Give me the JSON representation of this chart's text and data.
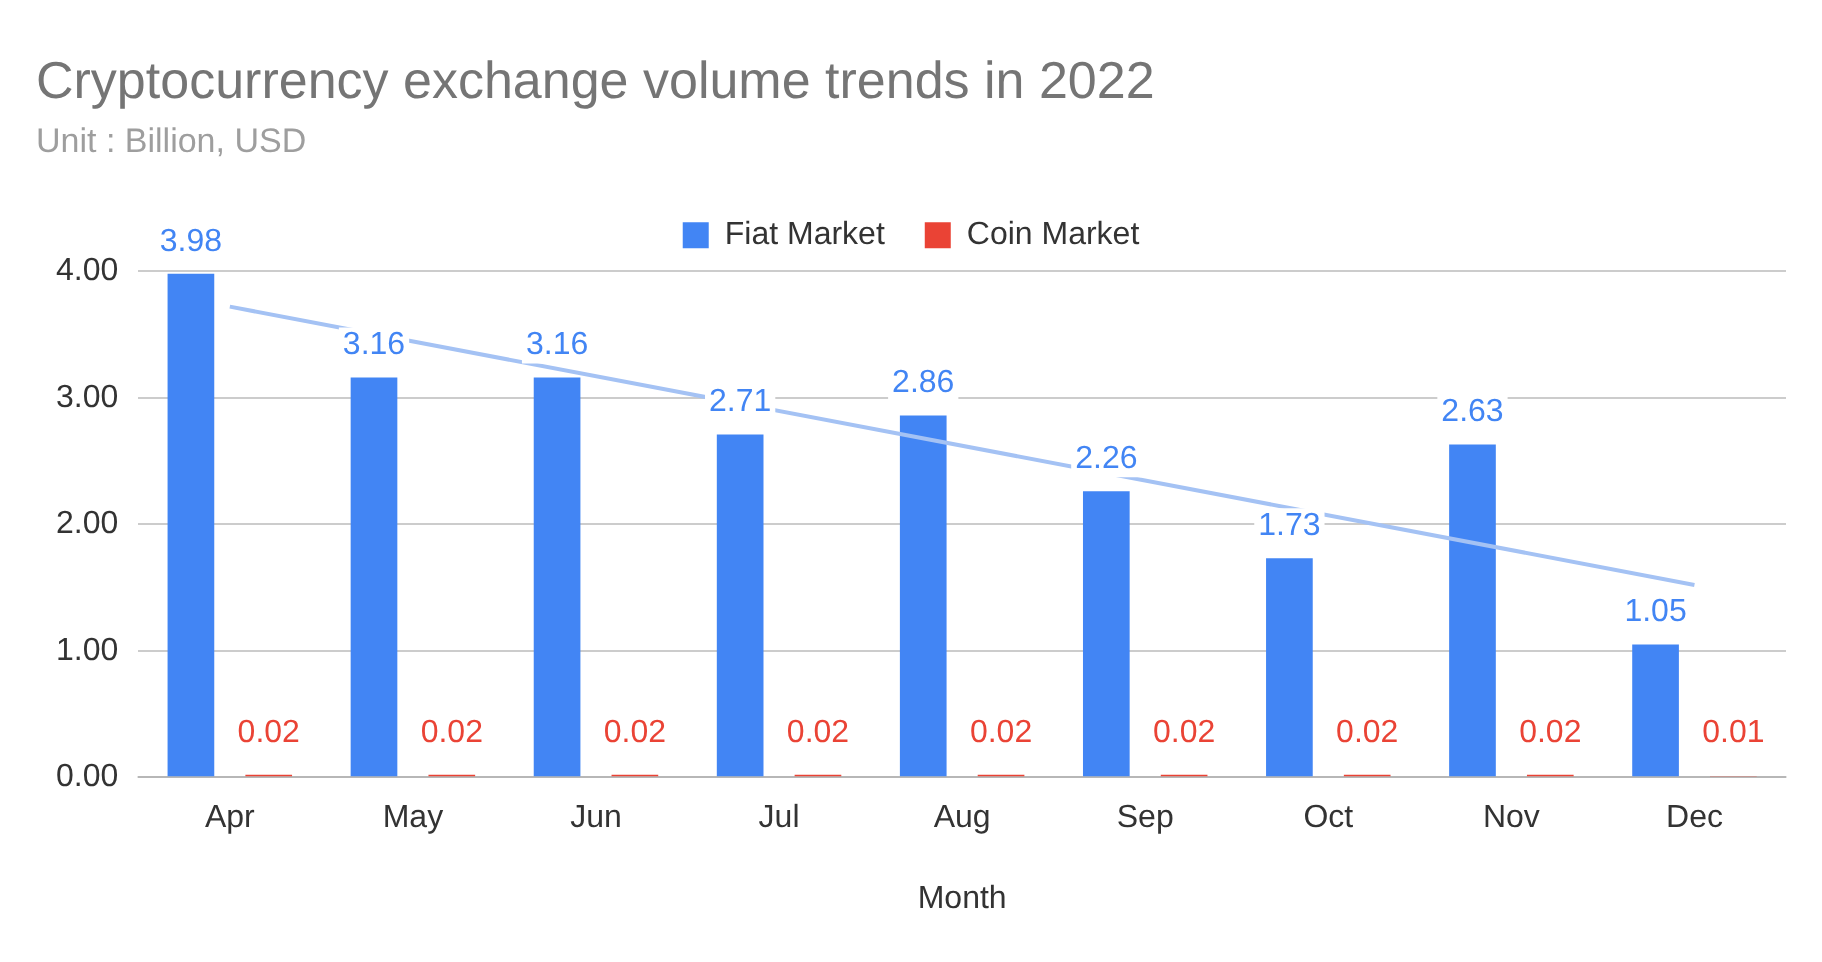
{
  "chart_data": {
    "type": "bar",
    "title": "Cryptocurrency exchange volume trends in 2022",
    "subtitle": "Unit : Billion, USD",
    "xlabel": "Month",
    "categories": [
      "Apr",
      "May",
      "Jun",
      "Jul",
      "Aug",
      "Sep",
      "Oct",
      "Nov",
      "Dec"
    ],
    "series": [
      {
        "name": "Fiat Market",
        "color": "#4285f4",
        "values": [
          3.98,
          3.16,
          3.16,
          2.71,
          2.86,
          2.26,
          1.73,
          2.63,
          1.05
        ],
        "value_labels": [
          "3.98",
          "3.16",
          "3.16",
          "2.71",
          "2.86",
          "2.26",
          "1.73",
          "2.63",
          "1.05"
        ]
      },
      {
        "name": "Coin Market",
        "color": "#ea4335",
        "values": [
          0.02,
          0.02,
          0.02,
          0.02,
          0.02,
          0.02,
          0.02,
          0.02,
          0.01
        ],
        "value_labels": [
          "0.02",
          "0.02",
          "0.02",
          "0.02",
          "0.02",
          "0.02",
          "0.02",
          "0.02",
          "0.01"
        ]
      },
      {
        "type": "line",
        "color": "#a4c2f4",
        "x": [
          "Apr",
          "Dec"
        ],
        "values": [
          3.72,
          1.52
        ]
      }
    ],
    "ylim": [
      0,
      4
    ],
    "yticks": [
      {
        "value": 0,
        "label": "0.00"
      },
      {
        "value": 1,
        "label": "1.00"
      },
      {
        "value": 2,
        "label": "2.00"
      },
      {
        "value": 3,
        "label": "3.00"
      },
      {
        "value": 4,
        "label": "4.00"
      }
    ],
    "grid": "y",
    "legend": "top"
  }
}
